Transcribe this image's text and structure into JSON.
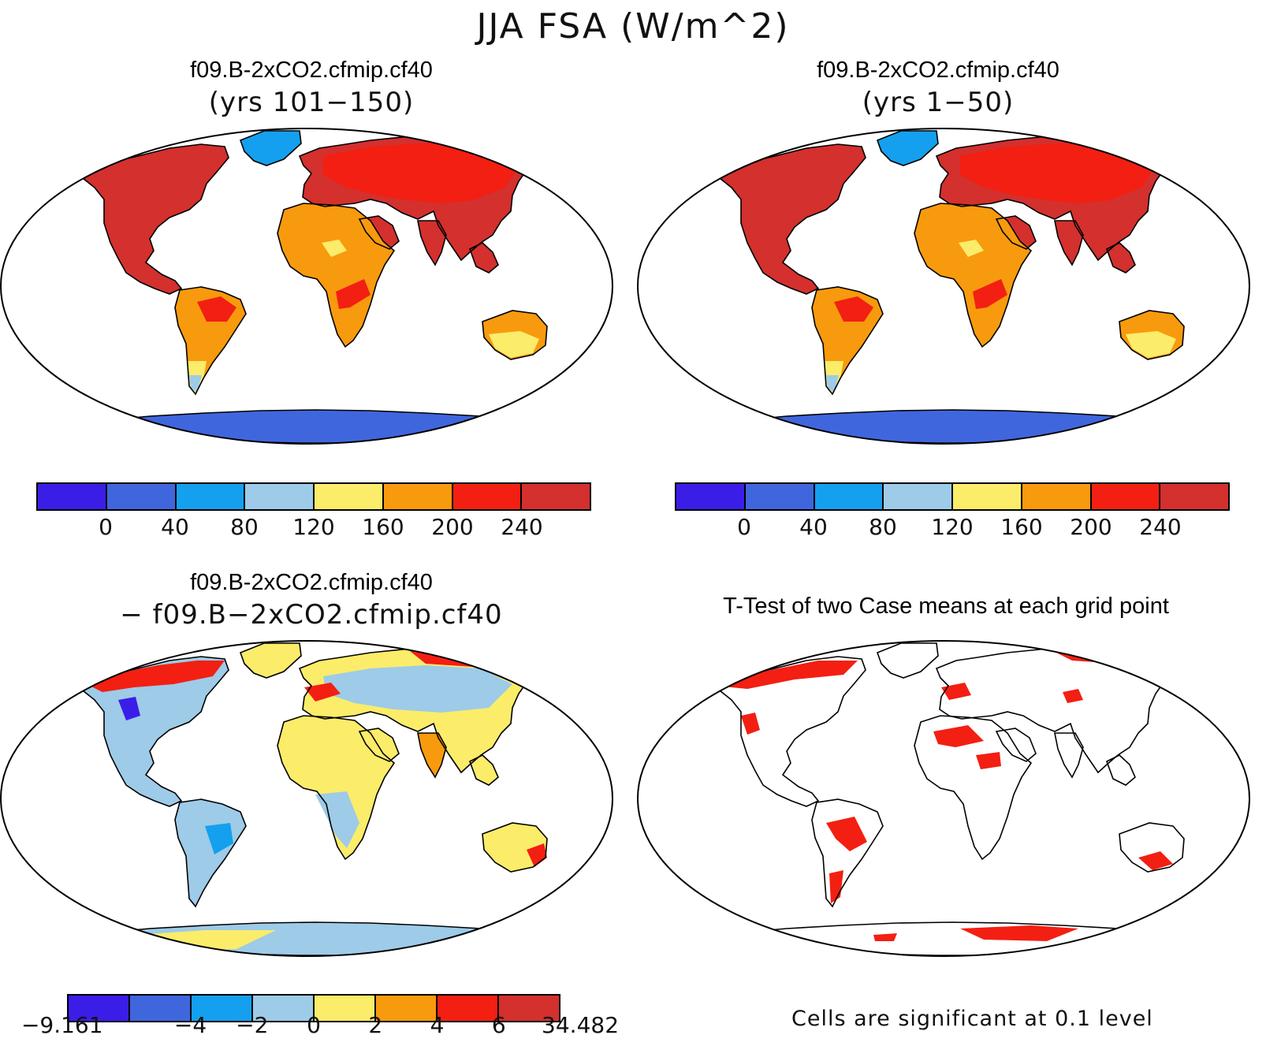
{
  "title": "JJA FSA (W/m^2)",
  "panels": [
    {
      "id": "top-left",
      "title": "f09.B-2xCO2.cfmip.cf40",
      "subtitle": "(yrs 101−150)",
      "scheme": "absolute"
    },
    {
      "id": "top-right",
      "title": "f09.B-2xCO2.cfmip.cf40",
      "subtitle": "(yrs 1−50)",
      "scheme": "absolute"
    },
    {
      "id": "bottom-left",
      "title": "f09.B-2xCO2.cfmip.cf40",
      "subtitle": "− f09.B−2xCO2.cfmip.cf40",
      "scheme": "difference"
    },
    {
      "id": "bottom-right",
      "title": "T-Test of two Case means at each grid point",
      "subtitle": "",
      "scheme": "ttest"
    }
  ],
  "colorbars": {
    "absolute": {
      "colors": [
        "#3b1de8",
        "#3f66dd",
        "#14a0ee",
        "#9dcbe8",
        "#fbec6a",
        "#f89a0d",
        "#f31f12",
        "#d3302e"
      ],
      "labels": [
        "0",
        "40",
        "80",
        "120",
        "160",
        "200",
        "240"
      ]
    },
    "difference": {
      "colors": [
        "#3b1de8",
        "#3f66dd",
        "#14a0ee",
        "#9dcbe8",
        "#fbec6a",
        "#f89a0d",
        "#f31f12",
        "#d3302e"
      ],
      "labels": [
        "−9.161",
        "−4",
        "−2",
        "0",
        "2",
        "4",
        "6",
        "34.482"
      ]
    }
  },
  "ttest_note": "Cells are significant at 0.1 level",
  "colors": {
    "land_high": "#d3302e",
    "antarctica_abs": "#3f66dd",
    "antarctica_diff": "#9dcbe8",
    "significant": "#f31f12"
  }
}
